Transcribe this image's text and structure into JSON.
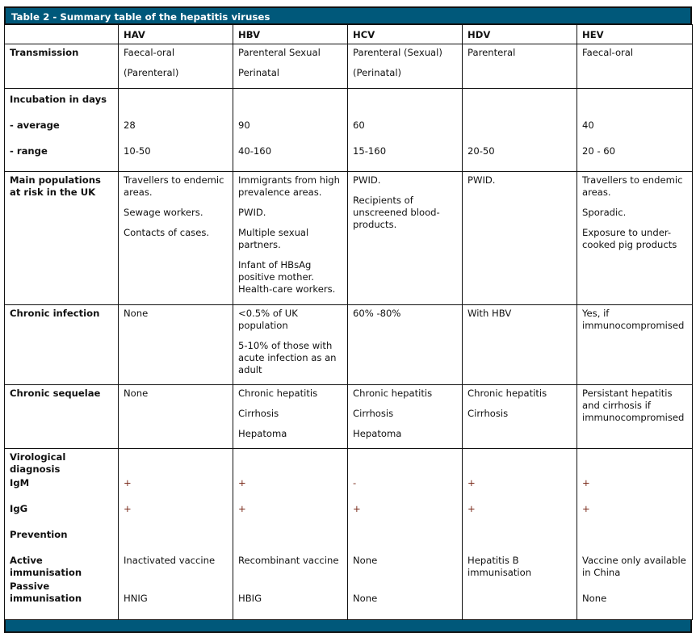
{
  "title": "Table 2 - Summary table of the hepatitis viruses",
  "columns": [
    "",
    "HAV",
    "HBV",
    "HCV",
    "HDV",
    "HEV"
  ],
  "transmission": {
    "label": "Transmission",
    "values": [
      [
        "Faecal-oral",
        "(Parenteral)"
      ],
      [
        "Parenteral Sexual",
        "Perinatal"
      ],
      [
        "Parenteral (Sexual)",
        "(Perinatal)"
      ],
      [
        "Parenteral"
      ],
      [
        "Faecal-oral"
      ]
    ]
  },
  "incubation": {
    "label": "Incubation in days",
    "average_label": "- average",
    "range_label": "- range",
    "average": [
      "28",
      "90",
      "60",
      "",
      "40"
    ],
    "range": [
      "10-50",
      "40-160",
      "15-160",
      "20-50",
      "20 - 60"
    ]
  },
  "populations": {
    "label": "Main populations at risk in the UK",
    "values": [
      [
        "Travellers to endemic areas.",
        "Sewage workers.",
        "Contacts of cases."
      ],
      [
        "Immigrants from high prevalence areas.",
        "PWID.",
        "Multiple sexual partners.",
        "Infant of HBsAg positive mother. Health-care workers."
      ],
      [
        "PWID.",
        "Recipients of unscreened blood-products."
      ],
      [
        "PWID."
      ],
      [
        "Travellers to endemic areas.",
        "Sporadic.",
        "Exposure to under-cooked pig products"
      ]
    ]
  },
  "chronic_infection": {
    "label": "Chronic infection",
    "values": [
      [
        "None"
      ],
      [
        "<0.5% of UK population",
        "5-10% of those with acute infection as an adult"
      ],
      [
        "60% -80%"
      ],
      [
        "With HBV"
      ],
      [
        "Yes, if immunocompromised"
      ]
    ]
  },
  "chronic_sequelae": {
    "label": "Chronic sequelae",
    "values": [
      [
        "None"
      ],
      [
        "Chronic hepatitis",
        "Cirrhosis",
        "Hepatoma"
      ],
      [
        "Chronic hepatitis",
        "Cirrhosis",
        "Hepatoma"
      ],
      [
        "Chronic hepatitis",
        "Cirrhosis"
      ],
      [
        "Persistant hepatitis and cirrhosis if immunocompromised"
      ]
    ]
  },
  "virological": {
    "label": "Virological diagnosis",
    "igm_label": "IgM",
    "igg_label": "IgG",
    "igm": [
      "+",
      "+",
      "-",
      "+",
      "+"
    ],
    "igg": [
      "+",
      "+",
      "+",
      "+",
      "+"
    ]
  },
  "prevention": {
    "label": "Prevention",
    "active_label": "Active immunisation",
    "passive_label": "Passive immunisation",
    "active": [
      "Inactivated vaccine",
      "Recombinant vaccine",
      "None",
      "Hepatitis B immunisation",
      "Vaccine only available in China"
    ],
    "passive": [
      "HNIG",
      "HBIG",
      "None",
      "",
      "None"
    ]
  }
}
